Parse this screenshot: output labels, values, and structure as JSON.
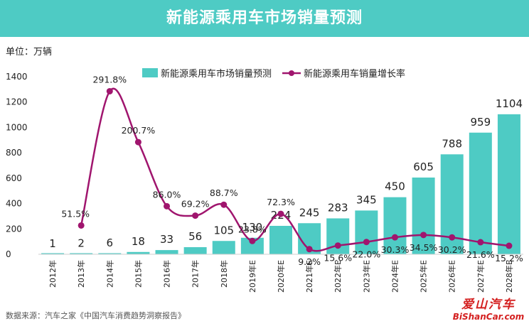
{
  "title": "新能源乘用车市场销量预测",
  "unit": "单位：万辆",
  "source": "数据来源：汽车之家《中国汽车消费趋势洞察报告》",
  "watermark": {
    "line1": "爱山汽车",
    "line2": "BiShanCar.com"
  },
  "colors": {
    "bar": "#4ecbc4",
    "line": "#a0156e",
    "title_bg": "#4ecbc4"
  },
  "chart_data": {
    "type": "bar",
    "categories": [
      "2012年",
      "2013年",
      "2014年",
      "2015年",
      "2016年",
      "2017年",
      "2018年",
      "2019年E",
      "2020年E",
      "2021年E",
      "2022年E",
      "2023年E",
      "2024年E",
      "2025年E",
      "2026年E",
      "2027年E",
      "2028年E"
    ],
    "ylim": [
      0,
      1400
    ],
    "yticks": [
      0,
      200,
      400,
      600,
      800,
      1000,
      1200,
      1400
    ],
    "grid": false,
    "legend_position": "top-right",
    "series": [
      {
        "name": "新能源乘用车市场销量预测",
        "type": "bar",
        "values": [
          1,
          2,
          6,
          18,
          33,
          56,
          105,
          130,
          224,
          245,
          283,
          345,
          450,
          605,
          788,
          959,
          1104
        ],
        "labels": [
          "1",
          "2",
          "6",
          "18",
          "33",
          "56",
          "105",
          "130",
          "224",
          "245",
          "283",
          "345",
          "450",
          "605",
          "788",
          "959",
          "1104"
        ]
      },
      {
        "name": "新能源乘用车销量增长率",
        "type": "line",
        "values": [
          null,
          51.5,
          291.8,
          200.7,
          86.0,
          69.2,
          88.7,
          23.8,
          72.3,
          9.2,
          15.6,
          22.0,
          30.3,
          34.5,
          30.2,
          21.6,
          15.2
        ],
        "labels": [
          "",
          "51.5%",
          "291.8%",
          "200.7%",
          "86.0%",
          "69.2%",
          "88.7%",
          "23.8%",
          "72.3%",
          "9.2%",
          "15.6%",
          "22.0%",
          "30.3%",
          "34.5%",
          "30.2%",
          "21.6%",
          "15.2%"
        ]
      }
    ]
  }
}
